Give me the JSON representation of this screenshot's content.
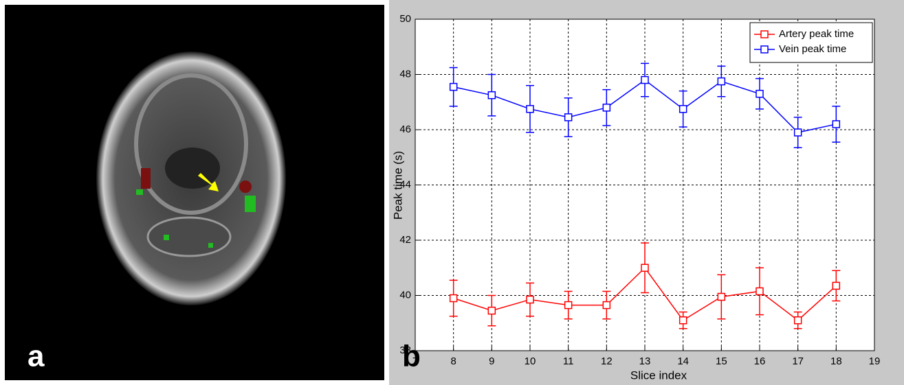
{
  "panel_labels": [
    "a",
    "b"
  ],
  "chart_data": {
    "type": "line",
    "xlabel": "Slice index",
    "ylabel": "Peak time (s)",
    "x": [
      8,
      9,
      10,
      11,
      12,
      13,
      14,
      15,
      16,
      17,
      18
    ],
    "series": [
      {
        "name": "Artery peak time",
        "color": "#ff0000",
        "values": [
          39.9,
          39.45,
          39.85,
          39.65,
          39.65,
          41.0,
          39.1,
          39.95,
          40.15,
          39.1,
          40.35
        ],
        "errors": [
          0.65,
          0.55,
          0.6,
          0.5,
          0.5,
          0.9,
          0.3,
          0.8,
          0.85,
          0.3,
          0.55
        ]
      },
      {
        "name": "Vein peak time",
        "color": "#0000ff",
        "values": [
          47.55,
          47.25,
          46.75,
          46.45,
          46.8,
          47.8,
          46.75,
          47.75,
          47.3,
          45.9,
          46.2
        ],
        "errors": [
          0.7,
          0.75,
          0.85,
          0.7,
          0.65,
          0.6,
          0.65,
          0.55,
          0.55,
          0.55,
          0.65
        ]
      }
    ],
    "xlim": [
      7,
      19
    ],
    "xticks": [
      7,
      8,
      9,
      10,
      11,
      12,
      13,
      14,
      15,
      16,
      17,
      18,
      19
    ],
    "ylim": [
      38,
      50
    ],
    "yticks": [
      38,
      40,
      42,
      44,
      46,
      48,
      50
    ],
    "grid": true,
    "legend": "upper right"
  }
}
